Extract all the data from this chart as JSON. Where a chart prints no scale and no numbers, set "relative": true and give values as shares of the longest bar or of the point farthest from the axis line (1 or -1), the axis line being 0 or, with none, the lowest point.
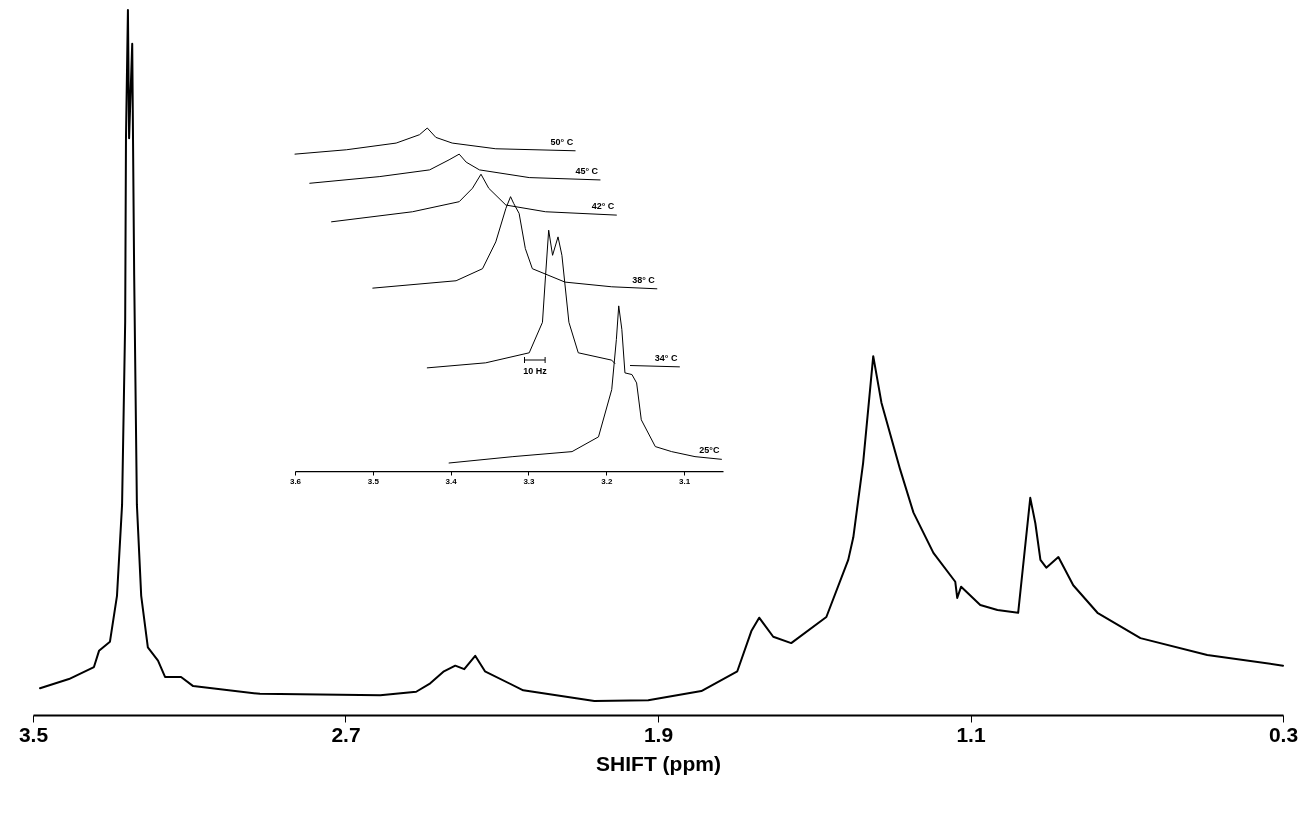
{
  "chart_data": [
    {
      "type": "line",
      "xlabel": "SHIFT (ppm)",
      "relative": true,
      "xlim": [
        3.5,
        0.3
      ],
      "xticks": [
        3.5,
        2.7,
        1.9,
        1.1,
        0.3
      ],
      "x": [
        3.482,
        3.408,
        3.344,
        3.331,
        3.303,
        3.285,
        3.272,
        3.264,
        3.262,
        3.257,
        3.254,
        3.246,
        3.241,
        3.234,
        3.223,
        3.206,
        3.18,
        3.162,
        3.121,
        3.09,
        2.919,
        2.611,
        2.519,
        2.483,
        2.448,
        2.419,
        2.396,
        2.368,
        2.343,
        2.245,
        2.063,
        1.925,
        1.789,
        1.697,
        1.661,
        1.641,
        1.605,
        1.559,
        1.469,
        1.413,
        1.4,
        1.375,
        1.349,
        1.328,
        1.28,
        1.246,
        1.195,
        1.139,
        1.134,
        1.124,
        1.075,
        1.031,
        0.978,
        0.947,
        0.934,
        0.921,
        0.906,
        0.875,
        0.837,
        0.775,
        0.665,
        0.494,
        0.3
      ],
      "series": [
        {
          "color": "#000000",
          "values": [
            0.038,
            0.051,
            0.068,
            0.091,
            0.104,
            0.169,
            0.298,
            0.559,
            0.818,
            1,
            0.818,
            0.952,
            0.624,
            0.298,
            0.169,
            0.096,
            0.077,
            0.054,
            0.054,
            0.041,
            0.03,
            0.028,
            0.033,
            0.045,
            0.062,
            0.07,
            0.065,
            0.084,
            0.062,
            0.035,
            0.02,
            0.021,
            0.034,
            0.062,
            0.119,
            0.138,
            0.111,
            0.102,
            0.139,
            0.22,
            0.252,
            0.357,
            0.509,
            0.443,
            0.348,
            0.287,
            0.23,
            0.189,
            0.166,
            0.182,
            0.156,
            0.149,
            0.145,
            0.308,
            0.272,
            0.22,
            0.209,
            0.224,
            0.184,
            0.145,
            0.109,
            0.085,
            0.07
          ]
        }
      ]
    },
    {
      "type": "line",
      "relative": true,
      "xlim": [
        3.6,
        3.05
      ],
      "xticks": [
        3.6,
        3.5,
        3.4,
        3.3,
        3.2,
        3.1
      ],
      "annotations": [
        "10 Hz"
      ],
      "series": [
        {
          "name": "50° C",
          "color": "#000000",
          "x": [
            3.6,
            3.534,
            3.47,
            3.44,
            3.43,
            3.419,
            3.398,
            3.342,
            3.24
          ],
          "values": [
            0.922,
            0.935,
            0.955,
            0.98,
            1,
            0.972,
            0.955,
            0.938,
            0.932
          ]
        },
        {
          "name": "45° C",
          "color": "#000000",
          "x": [
            3.581,
            3.491,
            3.427,
            3.402,
            3.389,
            3.38,
            3.363,
            3.299,
            3.208
          ],
          "values": [
            0.835,
            0.855,
            0.875,
            0.905,
            0.922,
            0.898,
            0.875,
            0.852,
            0.845
          ]
        },
        {
          "name": "42° C",
          "color": "#000000",
          "x": [
            3.553,
            3.449,
            3.389,
            3.372,
            3.361,
            3.351,
            3.329,
            3.278,
            3.187
          ],
          "values": [
            0.72,
            0.75,
            0.78,
            0.82,
            0.862,
            0.82,
            0.77,
            0.75,
            0.74
          ]
        },
        {
          "name": "38° C",
          "color": "#000000",
          "x": [
            3.5,
            3.393,
            3.359,
            3.342,
            3.329,
            3.323,
            3.319,
            3.312,
            3.304,
            3.295,
            3.253,
            3.193,
            3.135
          ],
          "values": [
            0.522,
            0.544,
            0.58,
            0.66,
            0.76,
            0.795,
            0.775,
            0.745,
            0.64,
            0.58,
            0.54,
            0.526,
            0.52
          ]
        },
        {
          "name": "34° C",
          "color": "#000000",
          "x": [
            3.43,
            3.355,
            3.299,
            3.282,
            3.278,
            3.274,
            3.269,
            3.262,
            3.257,
            3.248,
            3.236,
            3.193,
            3.189,
            3.18,
            3.169,
            3.106
          ],
          "values": [
            0.284,
            0.299,
            0.329,
            0.42,
            0.56,
            0.695,
            0.62,
            0.675,
            0.62,
            0.42,
            0.329,
            0.307,
            0.297,
            null,
            0.291,
            0.287
          ]
        },
        {
          "name": "25°C",
          "color": "#000000",
          "x": [
            3.402,
            3.32,
            3.244,
            3.21,
            3.193,
            3.187,
            3.184,
            3.18,
            3.176,
            3.167,
            3.161,
            3.155,
            3.137,
            3.116,
            3.086,
            3.052
          ],
          "values": [
            0,
            0.019,
            0.034,
            0.078,
            0.219,
            0.369,
            0.469,
            0.399,
            0.269,
            0.264,
            0.239,
            0.129,
            0.049,
            0.034,
            0.019,
            0.011
          ]
        }
      ]
    }
  ]
}
